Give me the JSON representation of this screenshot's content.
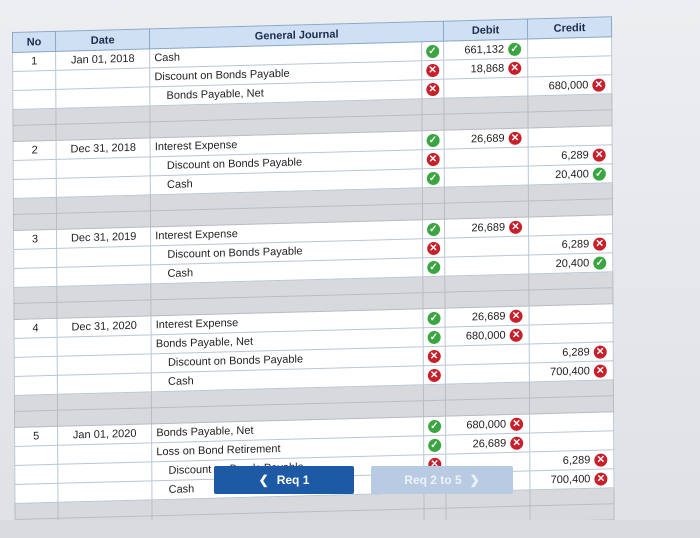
{
  "columns": {
    "no": "No",
    "date": "Date",
    "journal": "General Journal",
    "debit": "Debit",
    "credit": "Credit"
  },
  "entries": [
    {
      "no": "1",
      "date": "Jan 01, 2018",
      "lines": [
        {
          "account": "Cash",
          "indent": false,
          "mark": "ok",
          "debit": "661,132",
          "debit_status": "ok",
          "credit": "",
          "credit_status": ""
        },
        {
          "account": "Discount on Bonds Payable",
          "indent": false,
          "mark": "bad",
          "debit": "18,868",
          "debit_status": "bad",
          "credit": "",
          "credit_status": ""
        },
        {
          "account": "Bonds Payable, Net",
          "indent": true,
          "mark": "bad",
          "debit": "",
          "debit_status": "",
          "credit": "680,000",
          "credit_status": "bad"
        }
      ]
    },
    {
      "no": "2",
      "date": "Dec 31, 2018",
      "lines": [
        {
          "account": "Interest Expense",
          "indent": false,
          "mark": "ok",
          "debit": "26,689",
          "debit_status": "bad",
          "credit": "",
          "credit_status": ""
        },
        {
          "account": "Discount on Bonds Payable",
          "indent": true,
          "mark": "bad",
          "debit": "",
          "debit_status": "",
          "credit": "6,289",
          "credit_status": "bad"
        },
        {
          "account": "Cash",
          "indent": true,
          "mark": "ok",
          "debit": "",
          "debit_status": "",
          "credit": "20,400",
          "credit_status": "ok"
        }
      ]
    },
    {
      "no": "3",
      "date": "Dec 31, 2019",
      "lines": [
        {
          "account": "Interest Expense",
          "indent": false,
          "mark": "ok",
          "debit": "26,689",
          "debit_status": "bad",
          "credit": "",
          "credit_status": ""
        },
        {
          "account": "Discount on Bonds Payable",
          "indent": true,
          "mark": "bad",
          "debit": "",
          "debit_status": "",
          "credit": "6,289",
          "credit_status": "bad"
        },
        {
          "account": "Cash",
          "indent": true,
          "mark": "ok",
          "debit": "",
          "debit_status": "",
          "credit": "20,400",
          "credit_status": "ok"
        }
      ]
    },
    {
      "no": "4",
      "date": "Dec 31, 2020",
      "lines": [
        {
          "account": "Interest Expense",
          "indent": false,
          "mark": "ok",
          "debit": "26,689",
          "debit_status": "bad",
          "credit": "",
          "credit_status": ""
        },
        {
          "account": "Bonds Payable, Net",
          "indent": false,
          "mark": "ok",
          "debit": "680,000",
          "debit_status": "bad",
          "credit": "",
          "credit_status": ""
        },
        {
          "account": "Discount on Bonds Payable",
          "indent": true,
          "mark": "bad",
          "debit": "",
          "debit_status": "",
          "credit": "6,289",
          "credit_status": "bad"
        },
        {
          "account": "Cash",
          "indent": true,
          "mark": "bad",
          "debit": "",
          "debit_status": "",
          "credit": "700,400",
          "credit_status": "bad"
        }
      ]
    },
    {
      "no": "5",
      "date": "Jan 01, 2020",
      "lines": [
        {
          "account": "Bonds Payable, Net",
          "indent": false,
          "mark": "ok",
          "debit": "680,000",
          "debit_status": "bad",
          "credit": "",
          "credit_status": ""
        },
        {
          "account": "Loss on Bond Retirement",
          "indent": false,
          "mark": "ok",
          "debit": "26,689",
          "debit_status": "bad",
          "credit": "",
          "credit_status": ""
        },
        {
          "account": "Discount on Bonds Payable",
          "indent": true,
          "mark": "bad",
          "debit": "",
          "debit_status": "",
          "credit": "6,289",
          "credit_status": "bad"
        },
        {
          "account": "Cash",
          "indent": true,
          "mark": "bad",
          "debit": "",
          "debit_status": "",
          "credit": "700,400",
          "credit_status": "bad"
        }
      ]
    }
  ],
  "buttons": {
    "prev": "Req 1",
    "next": "Req 2 to 5"
  },
  "icons": {
    "ok": "check-circle-icon",
    "bad": "x-circle-icon",
    "prev": "chevron-left-icon",
    "next": "chevron-right-icon"
  },
  "colors": {
    "ok": "#3aa541",
    "bad": "#c8202b",
    "header": "#cfe0f5",
    "button": "#1d5aa6"
  }
}
